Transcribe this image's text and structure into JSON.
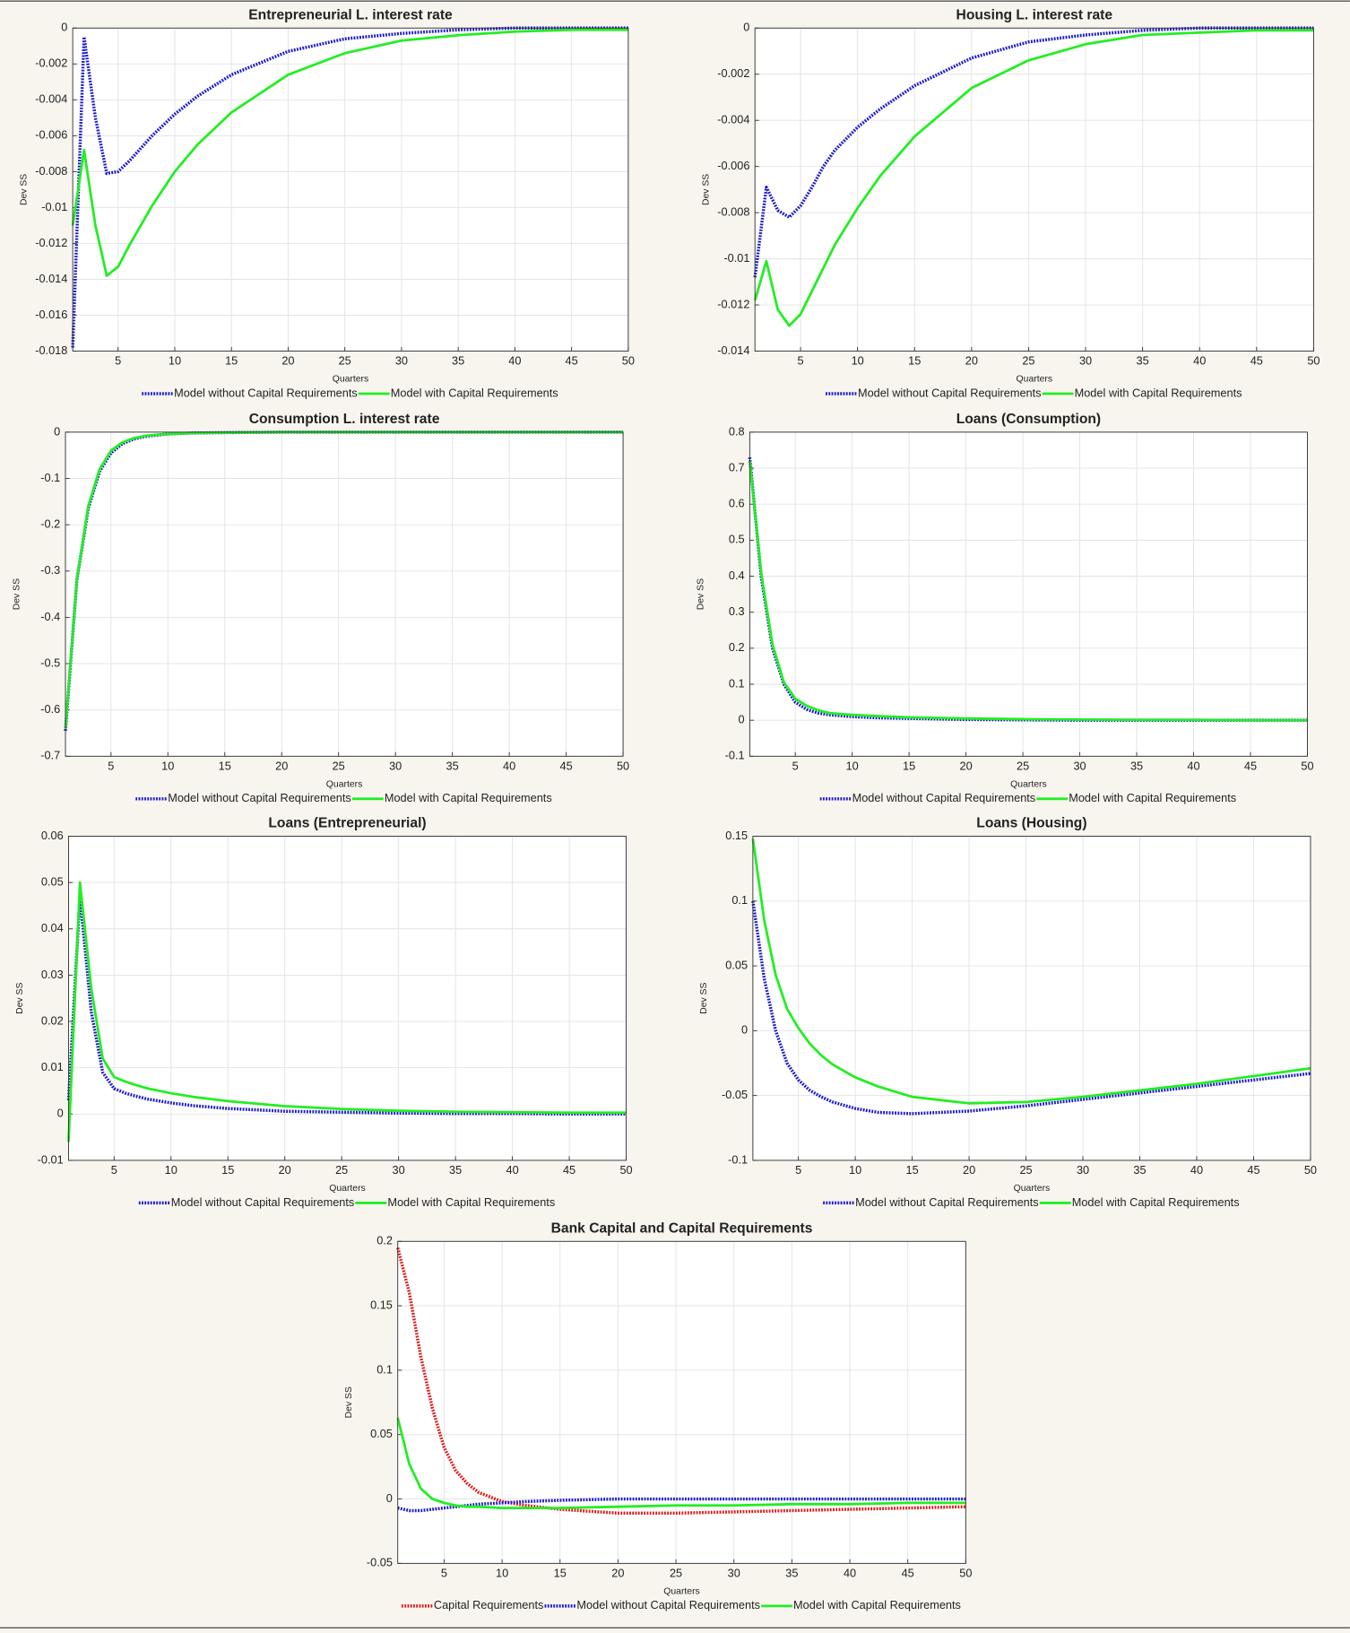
{
  "chart_data": [
    {
      "type": "line",
      "title": "Entrepreneurial L. interest rate",
      "xlabel": "Quarters",
      "ylabel": "Dev SS",
      "x": [
        1,
        2,
        3,
        4,
        5,
        6,
        7,
        8,
        10,
        12,
        15,
        20,
        25,
        30,
        35,
        40,
        45,
        50
      ],
      "xlim": [
        1,
        50
      ],
      "xticks": [
        5,
        10,
        15,
        20,
        25,
        30,
        35,
        40,
        45,
        50
      ],
      "ylim": [
        -0.018,
        0
      ],
      "yticks": [
        -0.018,
        -0.016,
        -0.014,
        -0.012,
        -0.01,
        -0.008,
        -0.006,
        -0.004,
        -0.002,
        0
      ],
      "grid": true,
      "legend": "bottom",
      "series": [
        {
          "name": "Model without Capital Requirements",
          "color": "#1a1acc",
          "style": "dotted",
          "values": [
            -0.0178,
            -0.0005,
            -0.005,
            -0.0081,
            -0.008,
            -0.0074,
            -0.0067,
            -0.006,
            -0.0048,
            -0.0038,
            -0.0026,
            -0.0013,
            -0.0006,
            -0.0003,
            -0.0001,
            0,
            0,
            0
          ]
        },
        {
          "name": "Model with Capital Requirements",
          "color": "#22ee22",
          "style": "solid",
          "values": [
            -0.011,
            -0.0068,
            -0.011,
            -0.0138,
            -0.0133,
            -0.0121,
            -0.011,
            -0.0099,
            -0.008,
            -0.0065,
            -0.0047,
            -0.0026,
            -0.0014,
            -0.0007,
            -0.0004,
            -0.0002,
            -0.0001,
            -0.0001
          ]
        }
      ]
    },
    {
      "type": "line",
      "title": "Housing L. interest rate",
      "xlabel": "Quarters",
      "ylabel": "Dev SS",
      "x": [
        1,
        2,
        3,
        4,
        5,
        6,
        7,
        8,
        10,
        12,
        15,
        20,
        25,
        30,
        35,
        40,
        45,
        50
      ],
      "xlim": [
        1,
        50
      ],
      "xticks": [
        5,
        10,
        15,
        20,
        25,
        30,
        35,
        40,
        45,
        50
      ],
      "ylim": [
        -0.014,
        0
      ],
      "yticks": [
        -0.014,
        -0.012,
        -0.01,
        -0.008,
        -0.006,
        -0.004,
        -0.002,
        0
      ],
      "grid": true,
      "legend": "bottom",
      "series": [
        {
          "name": "Model without Capital Requirements",
          "color": "#1a1acc",
          "style": "dotted",
          "values": [
            -0.0108,
            -0.0069,
            -0.0079,
            -0.0082,
            -0.0077,
            -0.0069,
            -0.006,
            -0.0053,
            -0.0043,
            -0.0035,
            -0.0025,
            -0.0013,
            -0.0006,
            -0.0003,
            -0.0001,
            0,
            0,
            0
          ]
        },
        {
          "name": "Model with Capital Requirements",
          "color": "#22ee22",
          "style": "solid",
          "values": [
            -0.0118,
            -0.0101,
            -0.0122,
            -0.0129,
            -0.0124,
            -0.0114,
            -0.0104,
            -0.0094,
            -0.0078,
            -0.0064,
            -0.0047,
            -0.0026,
            -0.0014,
            -0.0007,
            -0.0003,
            -0.0002,
            -0.0001,
            -0.0001
          ]
        }
      ]
    },
    {
      "type": "line",
      "title": "Consumption L. interest rate",
      "xlabel": "Quarters",
      "ylabel": "Dev SS",
      "x": [
        1,
        2,
        3,
        4,
        5,
        6,
        7,
        8,
        10,
        12,
        15,
        20,
        25,
        30,
        35,
        40,
        45,
        50
      ],
      "xlim": [
        1,
        50
      ],
      "xticks": [
        5,
        10,
        15,
        20,
        25,
        30,
        35,
        40,
        45,
        50
      ],
      "ylim": [
        -0.7,
        0
      ],
      "yticks": [
        -0.7,
        -0.6,
        -0.5,
        -0.4,
        -0.3,
        -0.2,
        -0.1,
        0
      ],
      "grid": true,
      "legend": "bottom",
      "series": [
        {
          "name": "Model without Capital Requirements",
          "color": "#1a1acc",
          "style": "dotted",
          "values": [
            -0.645,
            -0.32,
            -0.165,
            -0.085,
            -0.045,
            -0.025,
            -0.015,
            -0.009,
            -0.004,
            -0.002,
            -0.001,
            0,
            0,
            0,
            0,
            0,
            0,
            0
          ]
        },
        {
          "name": "Model with Capital Requirements",
          "color": "#22ee22",
          "style": "solid",
          "values": [
            -0.64,
            -0.32,
            -0.16,
            -0.08,
            -0.04,
            -0.022,
            -0.013,
            -0.008,
            -0.004,
            -0.002,
            -0.001,
            0,
            0,
            0,
            0,
            0,
            0,
            0
          ]
        }
      ]
    },
    {
      "type": "line",
      "title": "Loans (Consumption)",
      "xlabel": "Quarters",
      "ylabel": "Dev SS",
      "x": [
        1,
        2,
        3,
        4,
        5,
        6,
        7,
        8,
        10,
        12,
        15,
        20,
        25,
        30,
        35,
        40,
        45,
        50
      ],
      "xlim": [
        1,
        50
      ],
      "xticks": [
        5,
        10,
        15,
        20,
        25,
        30,
        35,
        40,
        45,
        50
      ],
      "ylim": [
        -0.1,
        0.8
      ],
      "yticks": [
        -0.1,
        0,
        0.1,
        0.2,
        0.3,
        0.4,
        0.5,
        0.6,
        0.7,
        0.8
      ],
      "grid": true,
      "legend": "bottom",
      "series": [
        {
          "name": "Model without Capital Requirements",
          "color": "#1a1acc",
          "style": "dotted",
          "values": [
            0.73,
            0.4,
            0.2,
            0.1,
            0.05,
            0.03,
            0.02,
            0.015,
            0.01,
            0.007,
            0.005,
            0.002,
            0.001,
            0,
            0,
            0,
            0,
            0
          ]
        },
        {
          "name": "Model with Capital Requirements",
          "color": "#22ee22",
          "style": "solid",
          "values": [
            0.72,
            0.41,
            0.21,
            0.105,
            0.06,
            0.04,
            0.028,
            0.02,
            0.015,
            0.012,
            0.008,
            0.005,
            0.003,
            0.002,
            0.001,
            0.001,
            0,
            0
          ]
        }
      ]
    },
    {
      "type": "line",
      "title": "Loans (Entrepreneurial)",
      "xlabel": "Quarters",
      "ylabel": "Dev SS",
      "x": [
        1,
        2,
        3,
        4,
        5,
        6,
        7,
        8,
        10,
        12,
        15,
        20,
        25,
        30,
        35,
        40,
        45,
        50
      ],
      "xlim": [
        1,
        50
      ],
      "xticks": [
        5,
        10,
        15,
        20,
        25,
        30,
        35,
        40,
        45,
        50
      ],
      "ylim": [
        -0.01,
        0.06
      ],
      "yticks": [
        -0.01,
        0,
        0.01,
        0.02,
        0.03,
        0.04,
        0.05,
        0.06
      ],
      "grid": true,
      "legend": "bottom",
      "series": [
        {
          "name": "Model without Capital Requirements",
          "color": "#1a1acc",
          "style": "dotted",
          "values": [
            0.003,
            0.047,
            0.022,
            0.009,
            0.0055,
            0.0045,
            0.0038,
            0.0032,
            0.0024,
            0.0018,
            0.0012,
            0.0006,
            0.0004,
            0.0002,
            0.0001,
            0.0001,
            0,
            0
          ]
        },
        {
          "name": "Model with Capital Requirements",
          "color": "#22ee22",
          "style": "solid",
          "values": [
            -0.006,
            0.05,
            0.027,
            0.012,
            0.008,
            0.007,
            0.0062,
            0.0055,
            0.0045,
            0.0037,
            0.0028,
            0.0017,
            0.0011,
            0.0007,
            0.0005,
            0.0004,
            0.0003,
            0.0003
          ]
        }
      ]
    },
    {
      "type": "line",
      "title": "Loans (Housing)",
      "xlabel": "Quarters",
      "ylabel": "Dev SS",
      "x": [
        1,
        2,
        3,
        4,
        5,
        6,
        7,
        8,
        10,
        12,
        15,
        20,
        25,
        30,
        35,
        40,
        45,
        50
      ],
      "xlim": [
        1,
        50
      ],
      "xticks": [
        5,
        10,
        15,
        20,
        25,
        30,
        35,
        40,
        45,
        50
      ],
      "ylim": [
        -0.1,
        0.15
      ],
      "yticks": [
        -0.1,
        -0.05,
        0,
        0.05,
        0.1,
        0.15
      ],
      "grid": true,
      "legend": "bottom",
      "series": [
        {
          "name": "Model without Capital Requirements",
          "color": "#1a1acc",
          "style": "dotted",
          "values": [
            0.1,
            0.04,
            0,
            -0.025,
            -0.038,
            -0.046,
            -0.051,
            -0.055,
            -0.06,
            -0.063,
            -0.064,
            -0.062,
            -0.058,
            -0.053,
            -0.048,
            -0.043,
            -0.038,
            -0.033
          ]
        },
        {
          "name": "Model with Capital Requirements",
          "color": "#22ee22",
          "style": "solid",
          "values": [
            0.148,
            0.085,
            0.043,
            0.017,
            0.002,
            -0.01,
            -0.019,
            -0.026,
            -0.036,
            -0.043,
            -0.051,
            -0.056,
            -0.055,
            -0.051,
            -0.046,
            -0.041,
            -0.035,
            -0.029
          ]
        }
      ]
    },
    {
      "type": "line",
      "title": "Bank Capital and Capital Requirements",
      "xlabel": "Quarters",
      "ylabel": "Dev SS",
      "x": [
        1,
        2,
        3,
        4,
        5,
        6,
        7,
        8,
        10,
        12,
        15,
        20,
        25,
        30,
        35,
        40,
        45,
        50
      ],
      "xlim": [
        1,
        50
      ],
      "xticks": [
        5,
        10,
        15,
        20,
        25,
        30,
        35,
        40,
        45,
        50
      ],
      "ylim": [
        -0.05,
        0.2
      ],
      "yticks": [
        -0.05,
        0,
        0.05,
        0.1,
        0.15,
        0.2
      ],
      "grid": true,
      "legend": "bottom",
      "series": [
        {
          "name": "Capital Requirements",
          "color": "#e01818",
          "style": "dotted",
          "values": [
            0.195,
            0.16,
            0.11,
            0.07,
            0.04,
            0.022,
            0.012,
            0.005,
            -0.002,
            -0.005,
            -0.008,
            -0.011,
            -0.011,
            -0.01,
            -0.009,
            -0.008,
            -0.007,
            -0.006
          ]
        },
        {
          "name": "Model without Capital Requirements",
          "color": "#1a1acc",
          "style": "dotted",
          "values": [
            -0.007,
            -0.009,
            -0.009,
            -0.008,
            -0.007,
            -0.006,
            -0.005,
            -0.004,
            -0.003,
            -0.002,
            -0.001,
            0,
            0,
            0,
            0,
            0,
            0,
            0
          ]
        },
        {
          "name": "Model with Capital Requirements",
          "color": "#22ee22",
          "style": "solid",
          "values": [
            0.063,
            0.027,
            0.008,
            0,
            -0.003,
            -0.005,
            -0.006,
            -0.006,
            -0.007,
            -0.007,
            -0.007,
            -0.006,
            -0.005,
            -0.005,
            -0.004,
            -0.004,
            -0.003,
            -0.003
          ]
        }
      ]
    }
  ]
}
